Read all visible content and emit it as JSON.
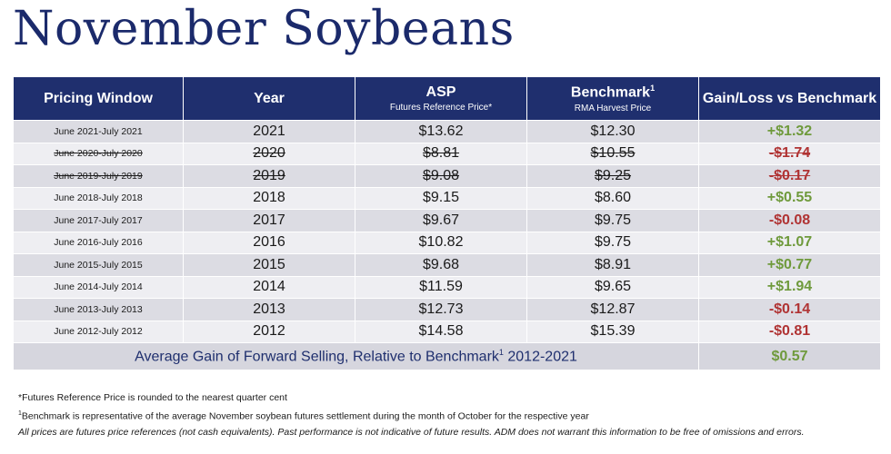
{
  "title": "November Soybeans",
  "headers": {
    "pricing_window": "Pricing Window",
    "year": "Year",
    "asp": "ASP",
    "asp_sub": "Futures Reference Price*",
    "benchmark": "Benchmark",
    "benchmark_sup": "1",
    "benchmark_sub": "RMA Harvest Price",
    "gain_loss": "Gain/Loss vs Benchmark"
  },
  "rows": [
    {
      "window": "June 2021-July 2021",
      "year": "2021",
      "asp": "$13.62",
      "benchmark": "$12.30",
      "gain": "+$1.32",
      "sign": "pos",
      "struck": false
    },
    {
      "window": "June 2020-July 2020",
      "year": "2020",
      "asp": "$8.81",
      "benchmark": "$10.55",
      "gain": "-$1.74",
      "sign": "neg",
      "struck": true
    },
    {
      "window": "June 2019-July 2019",
      "year": "2019",
      "asp": "$9.08",
      "benchmark": "$9.25",
      "gain": "-$0.17",
      "sign": "neg",
      "struck": true
    },
    {
      "window": "June 2018-July 2018",
      "year": "2018",
      "asp": "$9.15",
      "benchmark": "$8.60",
      "gain": "+$0.55",
      "sign": "pos",
      "struck": false
    },
    {
      "window": "June 2017-July 2017",
      "year": "2017",
      "asp": "$9.67",
      "benchmark": "$9.75",
      "gain": "-$0.08",
      "sign": "neg",
      "struck": false
    },
    {
      "window": "June 2016-July 2016",
      "year": "2016",
      "asp": "$10.82",
      "benchmark": "$9.75",
      "gain": "+$1.07",
      "sign": "pos",
      "struck": false
    },
    {
      "window": "June 2015-July 2015",
      "year": "2015",
      "asp": "$9.68",
      "benchmark": "$8.91",
      "gain": "+$0.77",
      "sign": "pos",
      "struck": false
    },
    {
      "window": "June 2014-July 2014",
      "year": "2014",
      "asp": "$11.59",
      "benchmark": "$9.65",
      "gain": "+$1.94",
      "sign": "pos",
      "struck": false
    },
    {
      "window": "June 2013-July 2013",
      "year": "2013",
      "asp": "$12.73",
      "benchmark": "$12.87",
      "gain": "-$0.14",
      "sign": "neg",
      "struck": false
    },
    {
      "window": "June 2012-July 2012",
      "year": "2012",
      "asp": "$14.58",
      "benchmark": "$15.39",
      "gain": "-$0.81",
      "sign": "neg",
      "struck": false
    }
  ],
  "average": {
    "label_pre": "Average Gain of Forward Selling, Relative to Benchmark",
    "label_sup": "1",
    "label_post": " 2012-2021",
    "value": "$0.57"
  },
  "footnotes": {
    "note1": "*Futures Reference Price is rounded to the nearest quarter cent",
    "note2_sup": "1",
    "note2": "Benchmark is representative of the average November soybean futures settlement during the month of October for the respective year",
    "note3": "All prices are futures price references (not cash equivalents). Past performance is not indicative of future results. ADM does not warrant this information to be free of omissions and errors."
  },
  "colors": {
    "header_bg": "#1f2f6e",
    "title": "#1b2a6b",
    "positive": "#6f9a3c",
    "negative": "#b03333"
  }
}
